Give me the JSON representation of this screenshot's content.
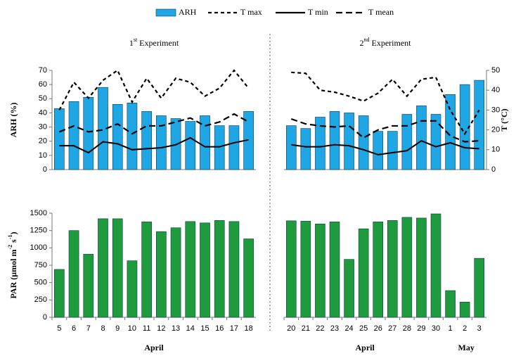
{
  "chart_data": [
    {
      "type": "bar",
      "title": [
        "1",
        "st",
        " Experiment"
      ],
      "y_label": "ARH  (%)",
      "legend": "top",
      "ylim": [
        0,
        70
      ],
      "yticks": [
        0,
        10,
        20,
        30,
        40,
        50,
        60,
        70
      ],
      "y2lim": [
        0,
        50
      ],
      "series": [
        {
          "name": "ARH",
          "type": "bar",
          "color": "#1ea7e4",
          "values": [
            43,
            48,
            51,
            58,
            46,
            47,
            41,
            38,
            36,
            34,
            38,
            31,
            31,
            41
          ]
        },
        {
          "name": "T max",
          "type": "line",
          "axis": "y2",
          "color": "#000000",
          "dash": "5 4",
          "values": [
            30,
            44,
            36,
            45,
            50,
            34,
            46,
            36,
            46,
            44,
            37,
            41,
            50,
            41
          ]
        },
        {
          "name": "T min",
          "type": "line",
          "axis": "y2",
          "color": "#000000",
          "values": [
            12,
            12,
            8.5,
            14,
            13,
            10,
            10.5,
            11,
            12.5,
            16,
            11.5,
            11.5,
            13.5,
            15
          ]
        },
        {
          "name": "T mean",
          "type": "line",
          "axis": "y2",
          "color": "#000000",
          "dash": "9 5",
          "values": [
            19,
            22,
            19,
            20,
            23,
            18,
            22,
            22,
            24,
            26,
            22,
            24,
            28,
            24
          ]
        }
      ]
    },
    {
      "type": "bar",
      "title": [
        "2",
        "nd",
        " Experiment"
      ],
      "y2_label": "T (°C)",
      "ylim": [
        0,
        70
      ],
      "y2lim": [
        0,
        50
      ],
      "y2ticks": [
        0,
        10,
        20,
        30,
        40,
        50
      ],
      "series": [
        {
          "type": "bar",
          "color": "#1ea7e4",
          "values": [
            31,
            29,
            37,
            41,
            40,
            38,
            27,
            27,
            39,
            45,
            39,
            53,
            60,
            63
          ]
        },
        {
          "type": "line",
          "axis": "y2",
          "color": "#000000",
          "dash": "5 4",
          "values": [
            49,
            48.5,
            40,
            39,
            37,
            34.5,
            38.5,
            45.5,
            37,
            45.5,
            46.5,
            30,
            18,
            30
          ]
        },
        {
          "type": "line",
          "axis": "y2",
          "color": "#000000",
          "values": [
            12.5,
            11.5,
            11.5,
            12.5,
            12,
            10,
            7.5,
            8.5,
            9.5,
            14.5,
            11.5,
            13.5,
            11,
            10.5
          ]
        },
        {
          "type": "line",
          "axis": "y2",
          "color": "#000000",
          "dash": "9 5",
          "values": [
            25.5,
            23,
            22,
            21.5,
            22,
            16,
            20,
            22,
            22,
            24.5,
            24.5,
            17,
            14,
            14.5
          ]
        }
      ]
    },
    {
      "type": "bar",
      "y_label": [
        "PAR  (µmol m",
        "-2",
        " s",
        "-1",
        ")"
      ],
      "ylim": [
        0,
        1500
      ],
      "yticks": [
        0,
        250,
        500,
        750,
        1000,
        1250,
        1500
      ],
      "categories": [
        "5",
        "6",
        "7",
        "8",
        "9",
        "10",
        "11",
        "12",
        "13",
        "14",
        "15",
        "16",
        "17",
        "18"
      ],
      "x_groups": [
        "April"
      ],
      "series": [
        {
          "type": "bar",
          "color": "#1e9b3c",
          "values": [
            690,
            1250,
            910,
            1420,
            1420,
            815,
            1375,
            1235,
            1290,
            1380,
            1360,
            1395,
            1380,
            1130
          ]
        }
      ]
    },
    {
      "type": "bar",
      "ylim": [
        0,
        1500
      ],
      "categories": [
        "20",
        "21",
        "22",
        "23",
        "24",
        "25",
        "26",
        "27",
        "28",
        "29",
        "30",
        "1",
        "2",
        "3"
      ],
      "x_groups": [
        "April",
        "May"
      ],
      "series": [
        {
          "type": "bar",
          "color": "#1e9b3c",
          "values": [
            1390,
            1385,
            1345,
            1375,
            835,
            1275,
            1375,
            1395,
            1440,
            1430,
            1490,
            385,
            220,
            850
          ]
        }
      ]
    }
  ]
}
